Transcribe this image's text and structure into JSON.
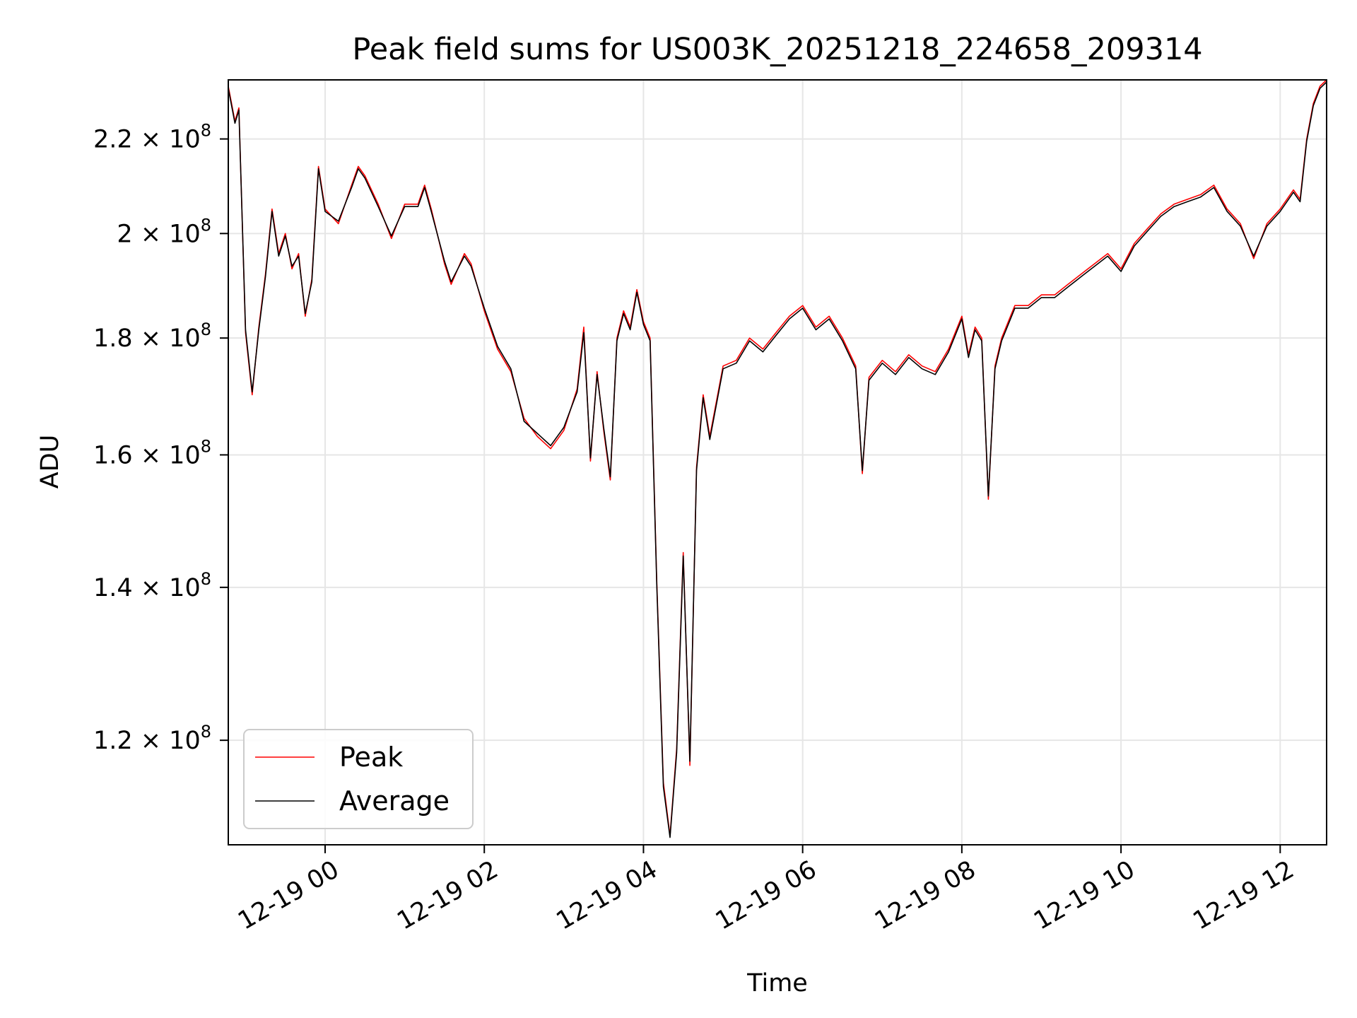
{
  "chart_data": {
    "type": "line",
    "title": "Peak field sums for US003K_20251218_224658_209314",
    "xlabel": "Time",
    "ylabel": "ADU",
    "xlim": [
      "2025-12-18 22:47",
      "2025-12-19 12:35"
    ],
    "ylim": [
      108000000,
      233500000
    ],
    "yscale": "log",
    "grid": true,
    "legend_position": "lower-left",
    "x_ticks": [
      "12-19 00",
      "12-19 02",
      "12-19 04",
      "12-19 06",
      "12-19 08",
      "12-19 10",
      "12-19 12"
    ],
    "y_ticks": [
      {
        "value": 120000000,
        "mantissa": "1.2",
        "exp": "8"
      },
      {
        "value": 140000000,
        "mantissa": "1.4",
        "exp": "8"
      },
      {
        "value": 160000000,
        "mantissa": "1.6",
        "exp": "8"
      },
      {
        "value": 180000000,
        "mantissa": "1.8",
        "exp": "8"
      },
      {
        "value": 200000000,
        "mantissa": "2",
        "exp": "8"
      },
      {
        "value": 220000000,
        "mantissa": "2.2",
        "exp": "8"
      }
    ],
    "series": [
      {
        "name": "Peak",
        "color": "#ff0000"
      },
      {
        "name": "Average",
        "color": "#000000"
      }
    ],
    "x": [
      "2025-12-18 22:47",
      "2025-12-18 22:52",
      "2025-12-18 22:55",
      "2025-12-18 23:00",
      "2025-12-18 23:05",
      "2025-12-18 23:10",
      "2025-12-18 23:15",
      "2025-12-18 23:20",
      "2025-12-18 23:25",
      "2025-12-18 23:30",
      "2025-12-18 23:35",
      "2025-12-18 23:40",
      "2025-12-18 23:45",
      "2025-12-18 23:50",
      "2025-12-18 23:55",
      "2025-12-19 00:00",
      "2025-12-19 00:10",
      "2025-12-19 00:20",
      "2025-12-19 00:25",
      "2025-12-19 00:30",
      "2025-12-19 00:40",
      "2025-12-19 00:50",
      "2025-12-19 01:00",
      "2025-12-19 01:10",
      "2025-12-19 01:15",
      "2025-12-19 01:20",
      "2025-12-19 01:30",
      "2025-12-19 01:35",
      "2025-12-19 01:45",
      "2025-12-19 01:50",
      "2025-12-19 02:00",
      "2025-12-19 02:10",
      "2025-12-19 02:20",
      "2025-12-19 02:30",
      "2025-12-19 02:40",
      "2025-12-19 02:50",
      "2025-12-19 03:00",
      "2025-12-19 03:10",
      "2025-12-19 03:15",
      "2025-12-19 03:20",
      "2025-12-19 03:25",
      "2025-12-19 03:30",
      "2025-12-19 03:35",
      "2025-12-19 03:40",
      "2025-12-19 03:45",
      "2025-12-19 03:50",
      "2025-12-19 03:55",
      "2025-12-19 04:00",
      "2025-12-19 04:05",
      "2025-12-19 04:10",
      "2025-12-19 04:15",
      "2025-12-19 04:20",
      "2025-12-19 04:25",
      "2025-12-19 04:30",
      "2025-12-19 04:35",
      "2025-12-19 04:40",
      "2025-12-19 04:45",
      "2025-12-19 04:50",
      "2025-12-19 05:00",
      "2025-12-19 05:10",
      "2025-12-19 05:20",
      "2025-12-19 05:30",
      "2025-12-19 05:40",
      "2025-12-19 05:50",
      "2025-12-19 06:00",
      "2025-12-19 06:10",
      "2025-12-19 06:20",
      "2025-12-19 06:30",
      "2025-12-19 06:40",
      "2025-12-19 06:45",
      "2025-12-19 06:50",
      "2025-12-19 07:00",
      "2025-12-19 07:10",
      "2025-12-19 07:20",
      "2025-12-19 07:30",
      "2025-12-19 07:40",
      "2025-12-19 07:50",
      "2025-12-19 08:00",
      "2025-12-19 08:05",
      "2025-12-19 08:10",
      "2025-12-19 08:15",
      "2025-12-19 08:20",
      "2025-12-19 08:25",
      "2025-12-19 08:30",
      "2025-12-19 08:40",
      "2025-12-19 08:50",
      "2025-12-19 09:00",
      "2025-12-19 09:10",
      "2025-12-19 09:20",
      "2025-12-19 09:30",
      "2025-12-19 09:40",
      "2025-12-19 09:50",
      "2025-12-19 10:00",
      "2025-12-19 10:10",
      "2025-12-19 10:20",
      "2025-12-19 10:30",
      "2025-12-19 10:40",
      "2025-12-19 10:50",
      "2025-12-19 11:00",
      "2025-12-19 11:10",
      "2025-12-19 11:20",
      "2025-12-19 11:30",
      "2025-12-19 11:40",
      "2025-12-19 11:50",
      "2025-12-19 12:00",
      "2025-12-19 12:10",
      "2025-12-19 12:15",
      "2025-12-19 12:20",
      "2025-12-19 12:25",
      "2025-12-19 12:30",
      "2025-12-19 12:35"
    ],
    "y": [
      232000000,
      224000000,
      227000000,
      181000000,
      170000000,
      182000000,
      192000000,
      205000000,
      196000000,
      200000000,
      193000000,
      196000000,
      184000000,
      191000000,
      214000000,
      205000000,
      202000000,
      210000000,
      214000000,
      212000000,
      206000000,
      199000000,
      206000000,
      206000000,
      210000000,
      205000000,
      194000000,
      190000000,
      196000000,
      194000000,
      185000000,
      178000000,
      174000000,
      166000000,
      163000000,
      161000000,
      164000000,
      171000000,
      182000000,
      159000000,
      174000000,
      164000000,
      156000000,
      180000000,
      185000000,
      182000000,
      189000000,
      183000000,
      180000000,
      141000000,
      115000000,
      109000000,
      119000000,
      145000000,
      117000000,
      158000000,
      170000000,
      163000000,
      175000000,
      176000000,
      180000000,
      178000000,
      181000000,
      184000000,
      186000000,
      182000000,
      184000000,
      180000000,
      175000000,
      157000000,
      173000000,
      176000000,
      174000000,
      177000000,
      175000000,
      174000000,
      178000000,
      184000000,
      177000000,
      182000000,
      180000000,
      153000000,
      175000000,
      180000000,
      186000000,
      186000000,
      188000000,
      188000000,
      190000000,
      192000000,
      194000000,
      196000000,
      193000000,
      198000000,
      201000000,
      204000000,
      206000000,
      207000000,
      208000000,
      210000000,
      205000000,
      202000000,
      195000000,
      202000000,
      205000000,
      209000000,
      207000000,
      220000000,
      228000000,
      232000000,
      233500000
    ],
    "y_avg": [
      231500000,
      223500000,
      226500000,
      181500000,
      170500000,
      181500000,
      191500000,
      204500000,
      195500000,
      199500000,
      193500000,
      195500000,
      184500000,
      190500000,
      213500000,
      204500000,
      202500000,
      209500000,
      213500000,
      211500000,
      205500000,
      199500000,
      205500000,
      205500000,
      209500000,
      204500000,
      194500000,
      190500000,
      195500000,
      193500000,
      185500000,
      178500000,
      174500000,
      165500000,
      163500000,
      161500000,
      164500000,
      170500000,
      181000000,
      159500000,
      173500000,
      164500000,
      156500000,
      179500000,
      184500000,
      181500000,
      188500000,
      182500000,
      179500000,
      140500000,
      114500000,
      108800000,
      118500000,
      144500000,
      117500000,
      157500000,
      169500000,
      162500000,
      174500000,
      175500000,
      179500000,
      177500000,
      180500000,
      183500000,
      185500000,
      181500000,
      183500000,
      179500000,
      174500000,
      157500000,
      172500000,
      175500000,
      173500000,
      176500000,
      174500000,
      173500000,
      177500000,
      183500000,
      176500000,
      181500000,
      179500000,
      153500000,
      174500000,
      179500000,
      185500000,
      185500000,
      187500000,
      187500000,
      189500000,
      191500000,
      193500000,
      195500000,
      192500000,
      197500000,
      200500000,
      203500000,
      205500000,
      206500000,
      207500000,
      209500000,
      204500000,
      201500000,
      195500000,
      201500000,
      204500000,
      208500000,
      206500000,
      219500000,
      227500000,
      231500000,
      233000000
    ]
  }
}
